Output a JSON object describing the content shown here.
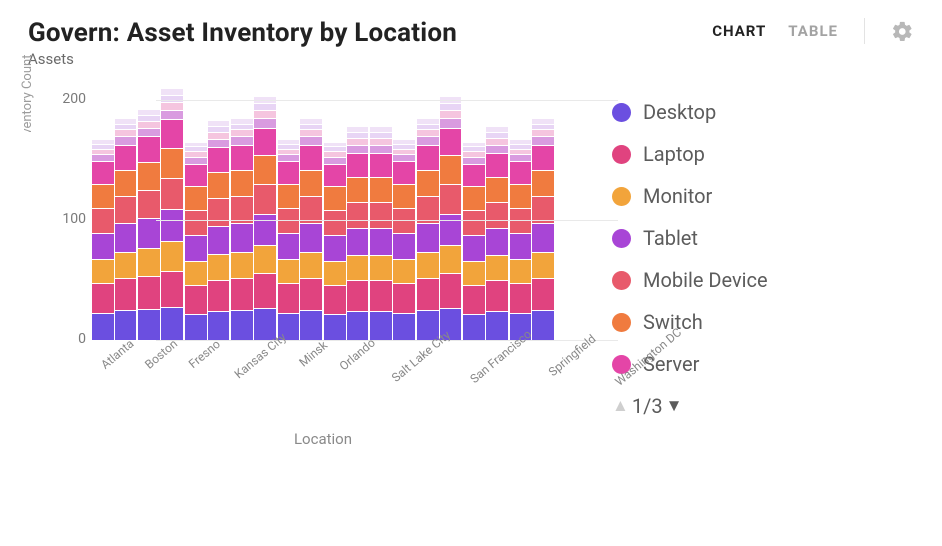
{
  "header": {
    "title": "Govern: Asset Inventory by Location",
    "subtitle": "Assets",
    "tabs": {
      "chart": "CHART",
      "table": "TABLE",
      "active": "chart"
    }
  },
  "chart": {
    "type": "stacked-bar-clustered",
    "ymax": 200,
    "yticks": [
      0,
      100,
      200
    ],
    "y_label": "Inventory Count",
    "x_label": "Location",
    "grid_color": "#e9e9e9",
    "background_color": "#ffffff",
    "categories": [
      "Atlanta",
      "Boston",
      "Fresno",
      "Kansas City",
      "Minsk",
      "Orlando",
      "Salt Lake City",
      "San Francisco",
      "Springfield",
      "Washington DC"
    ],
    "series_colors": {
      "Desktop": "#6b4fe0",
      "Laptop": "#e0437f",
      "Monitor": "#f2a43b",
      "Tablet": "#a845d6",
      "Mobile Device": "#e85a6b",
      "Switch": "#f07b3f",
      "Server": "#e445a7"
    },
    "segment_palette": [
      "#6b4fe0",
      "#e0437f",
      "#f2a43b",
      "#a845d6",
      "#e85a6b",
      "#f07b3f",
      "#e445a7",
      "#d99be0",
      "#f5c5df",
      "#e8d5f5",
      "#f0e2f7"
    ],
    "cluster_stacks": [
      [
        [
          22,
          24,
          19,
          21,
          20,
          19,
          18,
          5,
          4,
          3,
          3
        ],
        [
          24,
          26,
          21,
          23,
          22,
          21,
          20,
          6,
          5,
          4,
          4
        ]
      ],
      [
        [
          25,
          27,
          22,
          24,
          23,
          22,
          21,
          6,
          5,
          4,
          4
        ],
        [
          27,
          29,
          24,
          26,
          25,
          24,
          23,
          7,
          6,
          5,
          5
        ]
      ],
      [
        [
          21,
          23,
          19,
          21,
          20,
          19,
          18,
          5,
          4,
          3,
          3
        ],
        [
          23,
          25,
          21,
          23,
          22,
          21,
          20,
          6,
          5,
          4,
          4
        ]
      ],
      [
        [
          24,
          26,
          21,
          23,
          22,
          21,
          20,
          6,
          5,
          4,
          4
        ],
        [
          26,
          28,
          23,
          25,
          24,
          23,
          22,
          7,
          6,
          5,
          5
        ]
      ],
      [
        [
          22,
          24,
          19,
          21,
          20,
          19,
          18,
          5,
          4,
          3,
          3
        ],
        [
          24,
          26,
          21,
          23,
          22,
          21,
          20,
          6,
          5,
          4,
          4
        ]
      ],
      [
        [
          21,
          23,
          19,
          21,
          20,
          19,
          18,
          5,
          4,
          3,
          3
        ],
        [
          23,
          25,
          20,
          22,
          21,
          20,
          19,
          6,
          5,
          4,
          4
        ]
      ],
      [
        [
          23,
          25,
          20,
          22,
          21,
          20,
          19,
          6,
          5,
          4,
          4
        ],
        [
          22,
          24,
          19,
          21,
          20,
          19,
          18,
          5,
          4,
          3,
          3
        ]
      ],
      [
        [
          24,
          26,
          21,
          23,
          22,
          21,
          20,
          6,
          5,
          4,
          4
        ],
        [
          26,
          28,
          23,
          25,
          24,
          23,
          22,
          7,
          6,
          5,
          5
        ]
      ],
      [
        [
          21,
          23,
          19,
          21,
          20,
          19,
          18,
          5,
          4,
          3,
          3
        ],
        [
          23,
          25,
          20,
          22,
          21,
          20,
          19,
          6,
          5,
          4,
          4
        ]
      ],
      [
        [
          22,
          24,
          19,
          21,
          20,
          19,
          18,
          5,
          4,
          3,
          3
        ],
        [
          24,
          26,
          21,
          23,
          22,
          21,
          20,
          6,
          5,
          4,
          4
        ]
      ]
    ],
    "title_fontsize": 26,
    "axis_fontsize": 14,
    "category_fontsize": 12,
    "legend_fontsize": 20
  },
  "legend": {
    "items": [
      {
        "label": "Desktop",
        "color": "#6b4fe0"
      },
      {
        "label": "Laptop",
        "color": "#e0437f"
      },
      {
        "label": "Monitor",
        "color": "#f2a43b"
      },
      {
        "label": "Tablet",
        "color": "#a845d6"
      },
      {
        "label": "Mobile Device",
        "color": "#e85a6b"
      },
      {
        "label": "Switch",
        "color": "#f07b3f"
      },
      {
        "label": "Server",
        "color": "#e445a7"
      }
    ],
    "page_text": "1/3"
  }
}
